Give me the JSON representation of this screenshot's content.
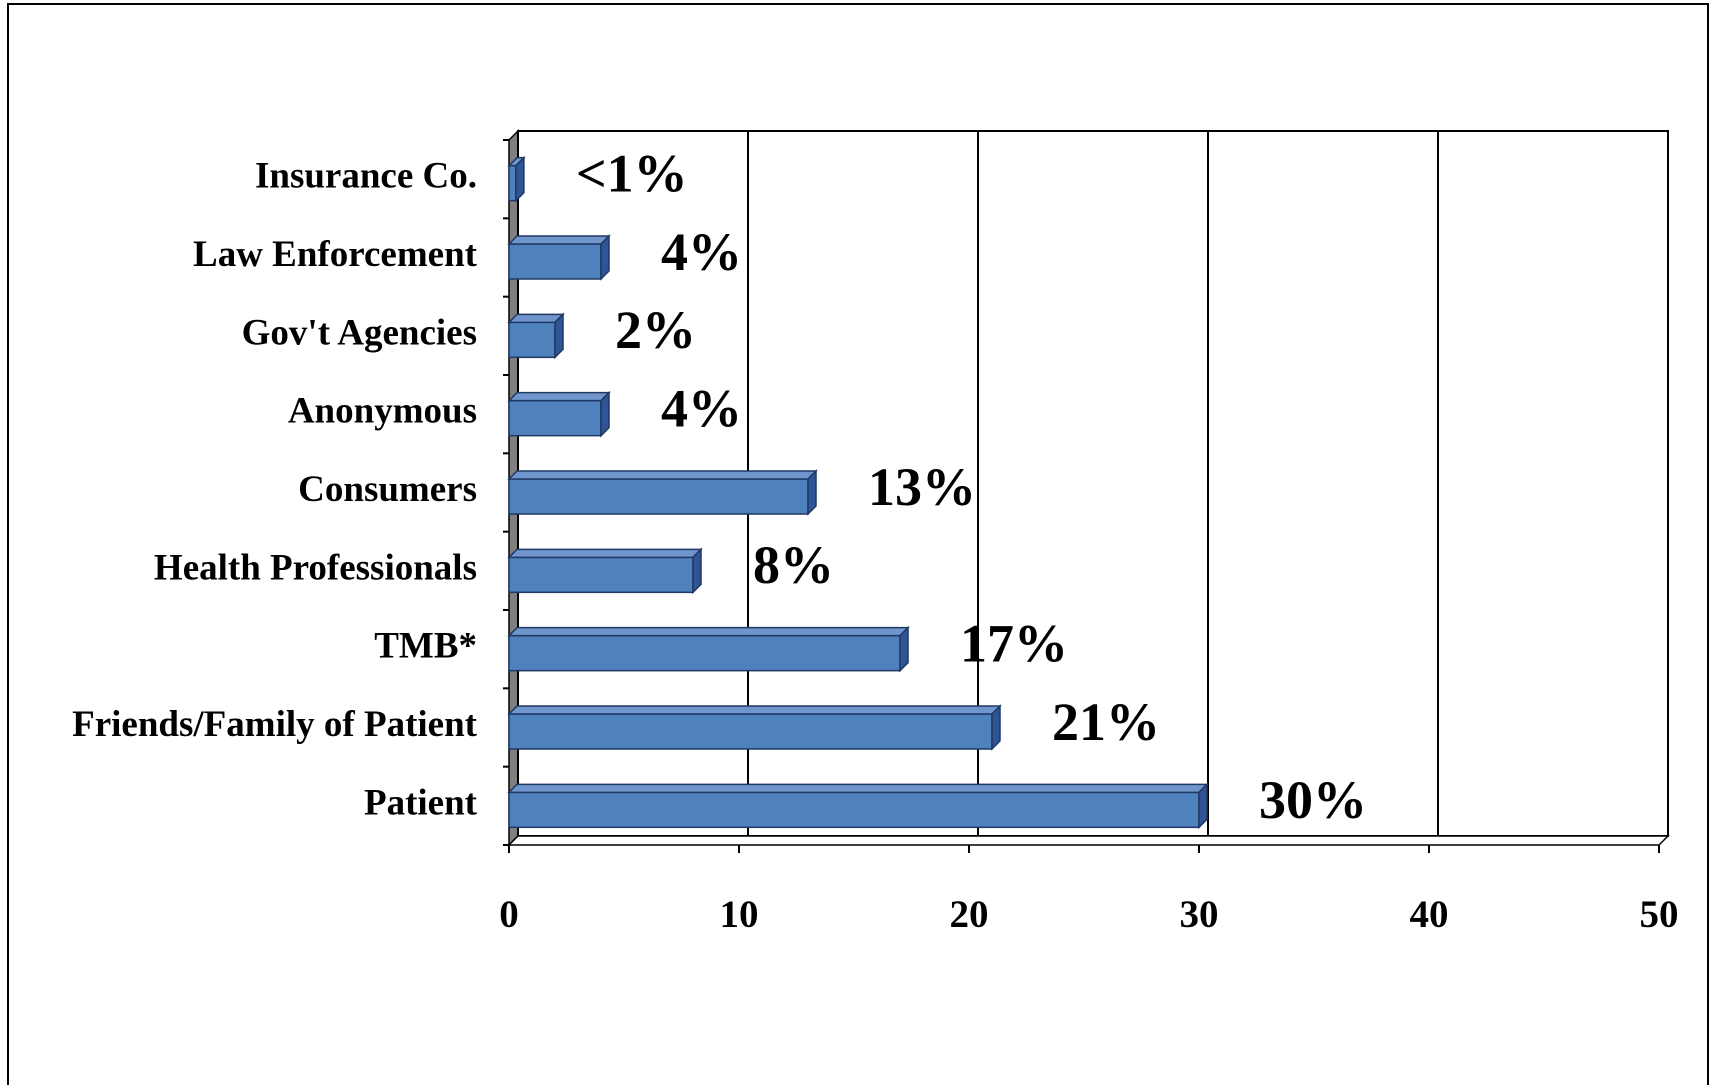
{
  "chart_data": {
    "type": "bar",
    "orientation": "horizontal",
    "categories": [
      "Insurance Co.",
      "Law Enforcement",
      "Gov't Agencies",
      "Anonymous",
      "Consumers",
      "Health Professionals",
      "TMB*",
      "Friends/Family of Patient",
      "Patient"
    ],
    "values": [
      0.3,
      4,
      2,
      4,
      13,
      8,
      17,
      21,
      30
    ],
    "value_labels": [
      "<1%",
      "4%",
      "2%",
      "4%",
      "13%",
      "8%",
      "17%",
      "21%",
      "30%"
    ],
    "color": "#4f81bd",
    "xlim": [
      0,
      50
    ],
    "xticks": [
      0,
      10,
      20,
      30,
      40,
      50
    ],
    "grid": true
  }
}
